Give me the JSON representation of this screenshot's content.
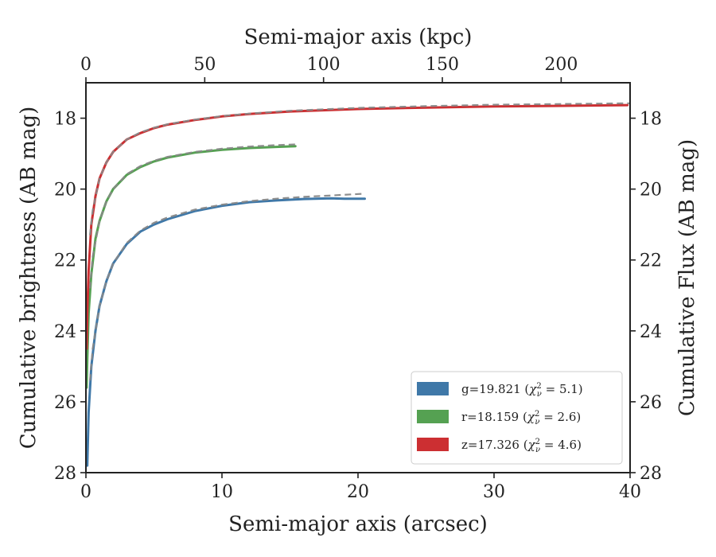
{
  "chart_data": {
    "type": "line",
    "title": "",
    "xlabel": "Semi-major axis (arcsec)",
    "x2label": "Semi-major axis (kpc)",
    "ylabel": "Cumulative brightness (AB mag)",
    "y2label": "Cumulative Flux (AB mag)",
    "xlim": [
      0,
      40
    ],
    "x2lim": [
      0,
      229
    ],
    "ylim": [
      28,
      17
    ],
    "y_inverted": true,
    "xticks": [
      0,
      10,
      20,
      30,
      40
    ],
    "x2ticks": [
      0,
      50,
      100,
      150,
      200
    ],
    "yticks": [
      18,
      20,
      22,
      24,
      26,
      28
    ],
    "grid": false,
    "legend_position": "lower-right",
    "series": [
      {
        "band": "g",
        "mag": "19.821",
        "chi2": "5.1",
        "color": "#3f78a8",
        "x": [
          0.1,
          0.2,
          0.4,
          0.7,
          1.0,
          1.5,
          2.0,
          3.0,
          4.0,
          5.0,
          6.0,
          8.0,
          10.0,
          12.0,
          14.0,
          16.0,
          18.0,
          19.0,
          20.5
        ],
        "y": [
          27.8,
          26.3,
          25.0,
          24.0,
          23.3,
          22.6,
          22.1,
          21.55,
          21.2,
          21.0,
          20.85,
          20.62,
          20.47,
          20.37,
          20.32,
          20.28,
          20.26,
          20.27,
          20.27
        ]
      },
      {
        "band": "r",
        "mag": "18.159",
        "chi2": "2.6",
        "color": "#55a152",
        "x": [
          0.05,
          0.1,
          0.2,
          0.4,
          0.7,
          1.0,
          1.5,
          2.0,
          3.0,
          4.0,
          5.0,
          6.0,
          8.0,
          10.0,
          12.0,
          14.0,
          15.4
        ],
        "y": [
          25.6,
          24.8,
          23.5,
          22.4,
          21.4,
          20.9,
          20.35,
          20.0,
          19.6,
          19.38,
          19.22,
          19.11,
          18.97,
          18.89,
          18.84,
          18.81,
          18.79
        ]
      },
      {
        "band": "z",
        "mag": "17.326",
        "chi2": "4.6",
        "color": "#cc2f32",
        "x": [
          0.05,
          0.1,
          0.2,
          0.4,
          0.7,
          1.0,
          1.5,
          2.0,
          3.0,
          4.0,
          5.0,
          6.0,
          8.0,
          10.0,
          12.0,
          15.0,
          20.0,
          25.0,
          30.0,
          35.0,
          39.8
        ],
        "y": [
          24.5,
          23.5,
          22.3,
          21.0,
          20.2,
          19.7,
          19.25,
          18.95,
          18.6,
          18.42,
          18.28,
          18.18,
          18.05,
          17.95,
          17.88,
          17.81,
          17.74,
          17.7,
          17.67,
          17.65,
          17.63
        ]
      }
    ],
    "model_curves": [
      {
        "of_band": "g",
        "color": "#888888",
        "x": [
          0.3,
          0.5,
          1.0,
          1.5,
          2.0,
          3.0,
          4.0,
          5.0,
          6.0,
          8.0,
          10.0,
          12.0,
          14.0,
          16.0,
          18.0,
          20.5
        ],
        "y": [
          25.4,
          24.5,
          23.3,
          22.6,
          22.1,
          21.52,
          21.17,
          20.95,
          20.8,
          20.58,
          20.44,
          20.34,
          20.27,
          20.22,
          20.18,
          20.13
        ]
      },
      {
        "of_band": "r",
        "color": "#888888",
        "x": [
          0.3,
          0.5,
          1.0,
          1.5,
          2.0,
          3.0,
          4.0,
          5.0,
          6.0,
          8.0,
          10.0,
          12.0,
          14.0,
          15.4
        ],
        "y": [
          22.8,
          21.9,
          20.9,
          20.35,
          20.0,
          19.58,
          19.35,
          19.2,
          19.09,
          18.95,
          18.86,
          18.8,
          18.76,
          18.74
        ]
      },
      {
        "of_band": "z",
        "color": "#888888",
        "x": [
          0.3,
          0.5,
          1.0,
          1.5,
          2.0,
          3.0,
          4.0,
          5.0,
          6.0,
          8.0,
          10.0,
          12.0,
          15.0,
          20.0,
          25.0,
          30.0,
          35.0,
          40.0
        ],
        "y": [
          21.3,
          20.6,
          19.7,
          19.25,
          18.95,
          18.6,
          18.4,
          18.27,
          18.17,
          18.04,
          17.94,
          17.87,
          17.79,
          17.71,
          17.66,
          17.62,
          17.6,
          17.58
        ]
      }
    ],
    "legend": [
      {
        "band_text": "g=19.821 (",
        "chi_prefix": "χ",
        "chi_sub": "ν",
        "chi_sup": "2",
        "chi_value": " = 5.1)",
        "color": "#3f78a8"
      },
      {
        "band_text": "r=18.159 (",
        "chi_prefix": "χ",
        "chi_sub": "ν",
        "chi_sup": "2",
        "chi_value": " = 2.6)",
        "color": "#55a152"
      },
      {
        "band_text": "z=17.326 (",
        "chi_prefix": "χ",
        "chi_sub": "ν",
        "chi_sup": "2",
        "chi_value": " = 4.6)",
        "color": "#cc2f32"
      }
    ]
  }
}
